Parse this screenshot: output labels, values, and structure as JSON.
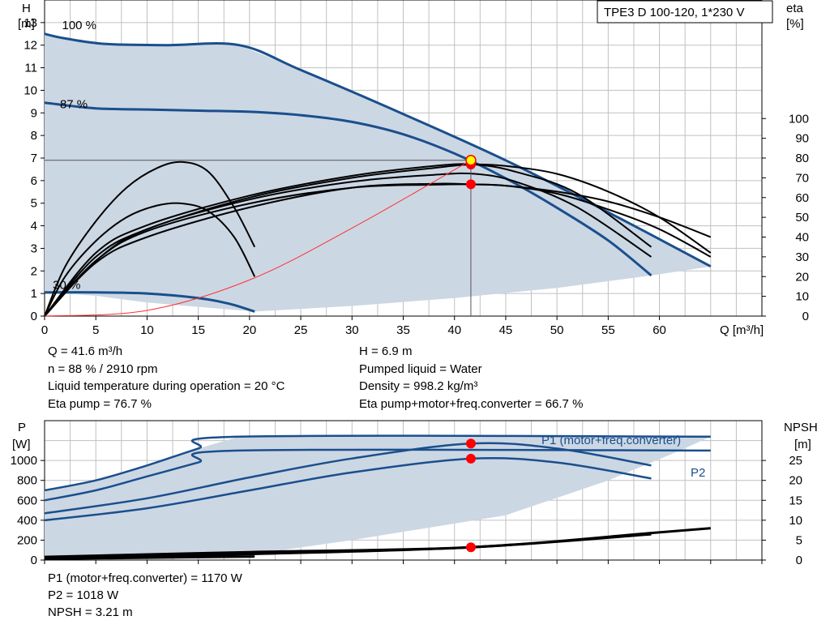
{
  "chart_data": [
    {
      "type": "line",
      "title": "TPE3 D 100-120, 1*230 V",
      "xlabel": "Q [m³/h]",
      "ylabel": "H\n[m]",
      "ylabel_right": "eta\n[%]",
      "xlim": [
        0,
        70
      ],
      "ylim": [
        0,
        14
      ],
      "ylim_right": [
        0,
        160
      ],
      "grid": true,
      "x_ticks": [
        "0",
        "5",
        "10",
        "15",
        "20",
        "25",
        "30",
        "35",
        "40",
        "45",
        "50",
        "55",
        "60"
      ],
      "y_ticks": [
        "0",
        "1",
        "2",
        "3",
        "4",
        "5",
        "6",
        "7",
        "8",
        "9",
        "10",
        "11",
        "12",
        "13"
      ],
      "y_ticks_right": [
        "0",
        "10",
        "20",
        "30",
        "40",
        "50",
        "60",
        "70",
        "80",
        "90",
        "100"
      ],
      "speed_labels": [
        {
          "text": "100 %",
          "x": 1.7,
          "y": 12.7
        },
        {
          "text": "87 %",
          "x": 1.5,
          "y": 9.2
        },
        {
          "text": "30 %",
          "x": 0.8,
          "y": 1.2
        }
      ],
      "operating_region": [
        [
          0,
          12.5
        ],
        [
          2,
          12.3
        ],
        [
          6,
          12.05
        ],
        [
          12,
          12.0
        ],
        [
          19,
          12.0
        ],
        [
          25,
          10.9
        ],
        [
          35,
          8.95
        ],
        [
          45,
          6.9
        ],
        [
          55,
          4.6
        ],
        [
          65,
          2.2
        ],
        [
          59.2,
          1.8
        ],
        [
          50,
          1.25
        ],
        [
          40,
          0.8
        ],
        [
          30,
          0.45
        ],
        [
          20.5,
          0.2
        ],
        [
          10,
          0.6
        ],
        [
          5,
          0.9
        ],
        [
          0,
          1.05
        ]
      ],
      "series": [
        {
          "kind": "head",
          "axis": "left",
          "x": [
            0,
            2,
            6,
            12,
            19,
            25,
            35,
            45,
            55,
            65
          ],
          "y": [
            12.5,
            12.3,
            12.05,
            12.0,
            12.0,
            10.9,
            8.95,
            6.9,
            4.6,
            2.2
          ]
        },
        {
          "kind": "head",
          "axis": "left",
          "x": [
            0,
            5,
            10,
            15,
            20,
            25,
            30,
            35,
            40,
            45,
            50,
            55,
            59.2
          ],
          "y": [
            9.45,
            9.2,
            9.15,
            9.1,
            9.05,
            8.9,
            8.6,
            8.05,
            7.2,
            6.1,
            4.8,
            3.35,
            1.8
          ]
        },
        {
          "kind": "head",
          "axis": "left",
          "x": [
            0,
            5,
            10,
            15,
            18,
            20.5
          ],
          "y": [
            1.05,
            1.05,
            1.0,
            0.8,
            0.55,
            0.2
          ]
        },
        {
          "kind": "eta",
          "axis": "right",
          "x": [
            0,
            2,
            5,
            8,
            11,
            13.5,
            16,
            18.5,
            20.5
          ],
          "y": [
            0,
            25,
            48,
            65,
            75,
            78,
            73,
            55,
            35
          ]
        },
        {
          "kind": "eta",
          "axis": "right",
          "x": [
            0,
            2,
            5,
            8,
            11,
            13.5,
            16,
            18.5,
            20.5
          ],
          "y": [
            0,
            20,
            38,
            50,
            56,
            57,
            53,
            40,
            20
          ]
        },
        {
          "kind": "eta",
          "axis": "right",
          "x": [
            0,
            5,
            10,
            20,
            30,
            38,
            41.6,
            45,
            50,
            55,
            60,
            65
          ],
          "y": [
            0,
            30,
            44,
            60,
            70,
            75,
            76.7,
            76,
            72,
            63,
            50,
            32
          ]
        },
        {
          "kind": "eta",
          "axis": "right",
          "x": [
            0,
            5,
            10,
            20,
            30,
            38,
            42,
            46,
            52,
            59.2
          ],
          "y": [
            0,
            32,
            46,
            61,
            71,
            76,
            76.7,
            73,
            62,
            35
          ]
        },
        {
          "kind": "eta",
          "axis": "right",
          "x": [
            0,
            5,
            10,
            20,
            30,
            38,
            42,
            46,
            52,
            59.2
          ],
          "y": [
            0,
            28,
            44,
            59,
            68,
            71.5,
            72,
            68,
            55,
            30
          ]
        },
        {
          "kind": "eta",
          "axis": "right",
          "x": [
            0,
            5,
            10,
            20,
            30,
            38,
            41.6,
            45,
            50,
            55,
            60,
            65
          ],
          "y": [
            0,
            27,
            40,
            55,
            65,
            67,
            66.7,
            66,
            62,
            54,
            44,
            30
          ]
        },
        {
          "kind": "eta",
          "axis": "right",
          "x": [
            0,
            5,
            10,
            20,
            30,
            38,
            41.6,
            45,
            50,
            55,
            60,
            65
          ],
          "y": [
            0,
            28,
            43,
            57,
            65,
            66.5,
            66.7,
            66,
            63,
            58,
            50,
            40
          ]
        },
        {
          "kind": "system",
          "axis": "left",
          "x": [
            0,
            10,
            20,
            30,
            41.6
          ],
          "y": [
            0,
            0.25,
            1.6,
            3.9,
            6.9
          ]
        }
      ],
      "operating_point": {
        "Q": 41.6,
        "H": 6.9,
        "eta_top": 76.7,
        "eta_bottom": 66.7
      }
    },
    {
      "type": "line",
      "ylabel": "P\n[W]",
      "ylabel_right": "NPSH\n[m]",
      "xlim": [
        0,
        70
      ],
      "ylim": [
        0,
        1400
      ],
      "ylim_right": [
        0,
        35
      ],
      "grid": true,
      "y_ticks": [
        "0",
        "200",
        "400",
        "600",
        "800",
        "1000"
      ],
      "y_ticks_right": [
        "0",
        "5",
        "10",
        "15",
        "20",
        "25"
      ],
      "labels": [
        "P1 (motor+freq.converter)",
        "P2"
      ],
      "operating_region": [
        [
          0,
          700
        ],
        [
          5,
          800
        ],
        [
          10,
          950
        ],
        [
          15,
          1120
        ],
        [
          19,
          1240
        ],
        [
          65,
          1240
        ],
        [
          62,
          1100
        ],
        [
          55,
          800
        ],
        [
          45,
          450
        ],
        [
          30,
          200
        ],
        [
          20.5,
          60
        ],
        [
          10,
          30
        ],
        [
          0,
          20
        ]
      ],
      "series": [
        {
          "kind": "P1",
          "axis": "left",
          "x": [
            0,
            5,
            10,
            15,
            19,
            65
          ],
          "y": [
            700,
            800,
            950,
            1120,
            1240,
            1240
          ]
        },
        {
          "kind": "P2",
          "axis": "left",
          "x": [
            0,
            5,
            10,
            15,
            19,
            65
          ],
          "y": [
            600,
            700,
            840,
            980,
            1100,
            1100
          ]
        },
        {
          "kind": "P1",
          "axis": "left",
          "x": [
            0,
            10,
            20,
            30,
            41.6,
            50,
            59.2
          ],
          "y": [
            470,
            620,
            830,
            1020,
            1170,
            1120,
            950
          ]
        },
        {
          "kind": "P2",
          "axis": "left",
          "x": [
            0,
            10,
            20,
            30,
            41.6,
            50,
            59.2
          ],
          "y": [
            400,
            520,
            700,
            880,
            1018,
            980,
            820
          ]
        },
        {
          "kind": "NPSH",
          "axis": "right",
          "x": [
            0,
            20,
            41.6,
            59.2
          ],
          "y": [
            0.5,
            1.5,
            3.21,
            6.5
          ]
        },
        {
          "kind": "NPSH",
          "axis": "right",
          "x": [
            0,
            20,
            41.6,
            59.2,
            65
          ],
          "y": [
            0.8,
            2,
            3.21,
            6.8,
            8
          ]
        },
        {
          "kind": "NPSH",
          "axis": "right",
          "x": [
            0,
            10,
            20.5
          ],
          "y": [
            0.3,
            0.6,
            0.9
          ]
        }
      ],
      "points": [
        {
          "axis": "left",
          "x": 41.6,
          "y": 1170
        },
        {
          "axis": "left",
          "x": 41.6,
          "y": 1018
        },
        {
          "axis": "right",
          "x": 41.6,
          "y": 3.21
        }
      ]
    }
  ],
  "info_top": {
    "q": "Q = 41.6 m³/h",
    "n": "n = 88 % / 2910 rpm",
    "temp": "Liquid temperature during operation = 20 °C",
    "eta_pump": "Eta pump = 76.7 %",
    "h": "H = 6.9 m",
    "liquid": "Pumped liquid = Water",
    "density": "Density = 998.2 kg/m³",
    "eta_total": "Eta pump+motor+freq.converter = 66.7 %"
  },
  "info_bottom": {
    "p1": "P1 (motor+freq.converter) = 1170 W",
    "p2": "P2 = 1018 W",
    "npsh": "NPSH = 3.21 m"
  },
  "colors": {
    "region_fill": "#ccd7e4",
    "curve_blue": "#1a4f8c",
    "curve_black": "#000000",
    "grid": "#c0c0c0",
    "marker_red": "#ff0000",
    "marker_yellow": "#ffff00",
    "system_red": "#ff3030"
  }
}
